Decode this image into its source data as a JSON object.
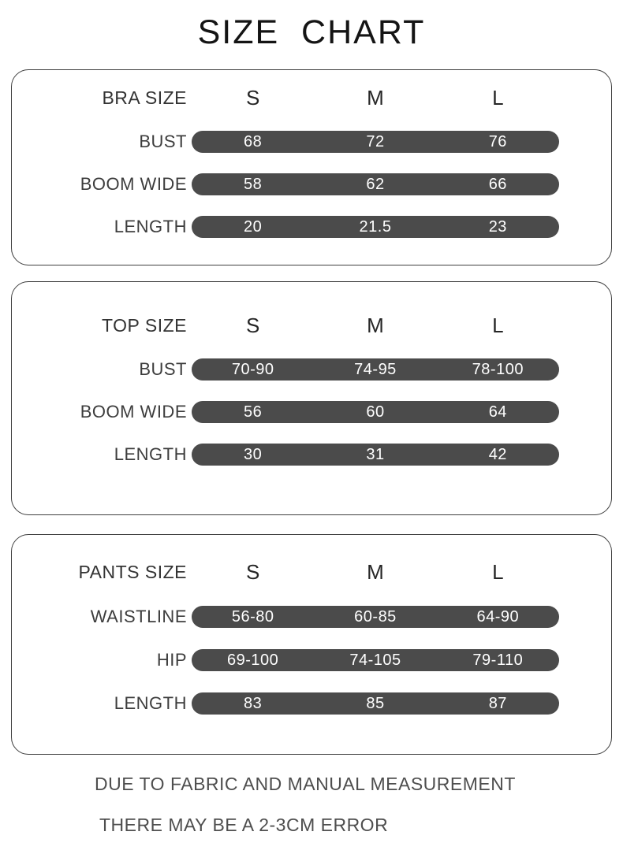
{
  "page_title": "SIZE  CHART",
  "chart_data": [
    {
      "type": "table",
      "title": "BRA SIZE",
      "columns": [
        "S",
        "M",
        "L"
      ],
      "rows": [
        {
          "label": "BUST",
          "values": [
            "68",
            "72",
            "76"
          ]
        },
        {
          "label": "BOOM WIDE",
          "values": [
            "58",
            "62",
            "66"
          ]
        },
        {
          "label": "LENGTH",
          "values": [
            "20",
            "21.5",
            "23"
          ]
        }
      ]
    },
    {
      "type": "table",
      "title": "TOP SIZE",
      "columns": [
        "S",
        "M",
        "L"
      ],
      "rows": [
        {
          "label": "BUST",
          "values": [
            "70-90",
            "74-95",
            "78-100"
          ]
        },
        {
          "label": "BOOM WIDE",
          "values": [
            "56",
            "60",
            "64"
          ]
        },
        {
          "label": "LENGTH",
          "values": [
            "30",
            "31",
            "42"
          ]
        }
      ]
    },
    {
      "type": "table",
      "title": "PANTS SIZE",
      "columns": [
        "S",
        "M",
        "L"
      ],
      "rows": [
        {
          "label": "WAISTLINE",
          "values": [
            "56-80",
            "60-85",
            "64-90"
          ]
        },
        {
          "label": "HIP",
          "values": [
            "69-100",
            "74-105",
            "79-110"
          ]
        },
        {
          "label": "LENGTH",
          "values": [
            "83",
            "85",
            "87"
          ]
        }
      ]
    }
  ],
  "footer": {
    "line1": "DUE TO FABRIC AND MANUAL MEASUREMENT",
    "line2": "THERE MAY BE A 2-3CM ERROR"
  },
  "colors": {
    "bar_fill": "#4b4b4b",
    "bar_text": "#ffffff",
    "panel_border": "#3f3f3f",
    "label_text": "#3d3d3d",
    "title_text": "#141414"
  }
}
